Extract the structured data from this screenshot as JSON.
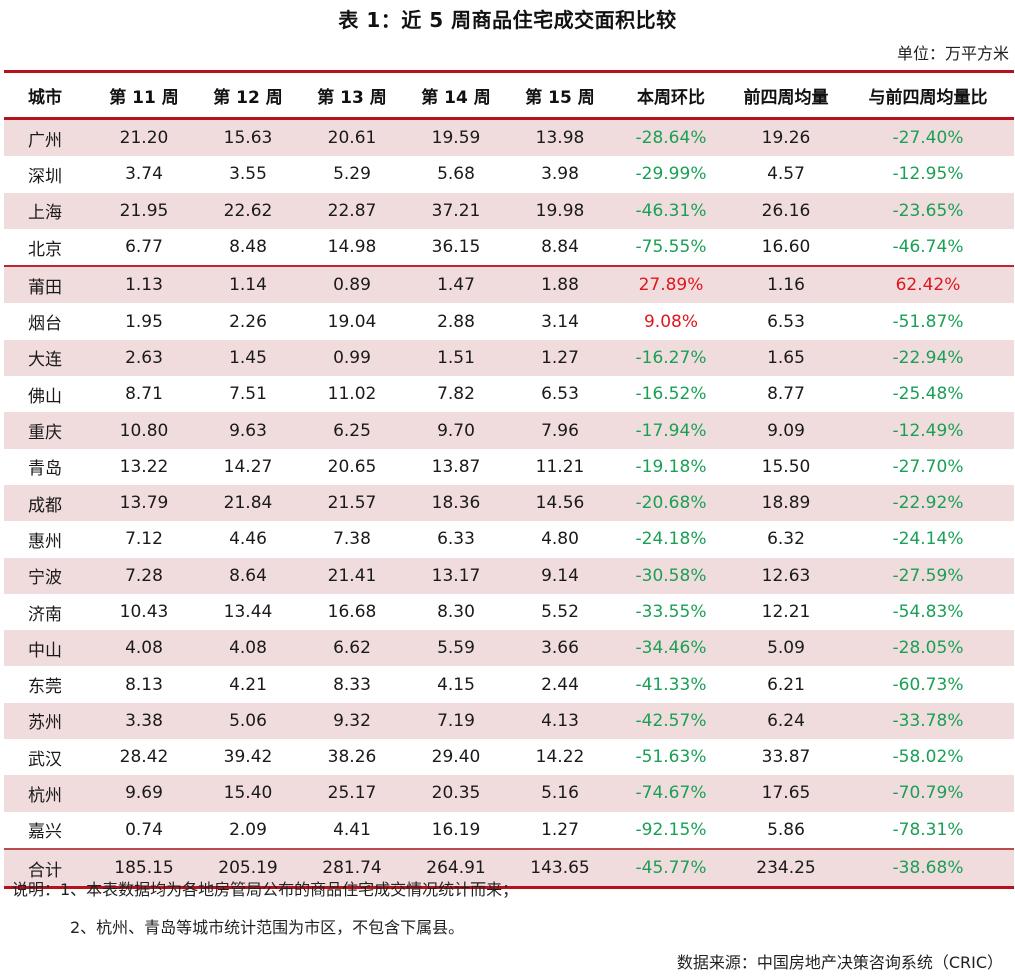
{
  "title": "表 1：近 5 周商品住宅成交面积比较",
  "unit": "单位：万平方米",
  "colors": {
    "rule": "#b5121b",
    "row_shade": "#f0dcdd",
    "negative": "#1aa055",
    "positive": "#e0161e"
  },
  "table": {
    "headers": [
      "城市",
      "第 11 周",
      "第 12 周",
      "第 13 周",
      "第 14 周",
      "第 15 周",
      "本周环比",
      "前四周均量",
      "与前四周均量比"
    ],
    "rows": [
      {
        "city": "广州",
        "w11": "21.20",
        "w12": "15.63",
        "w13": "20.61",
        "w14": "19.59",
        "w15": "13.98",
        "wow": "-28.64%",
        "avg4": "19.26",
        "vs_avg4": "-27.40%"
      },
      {
        "city": "深圳",
        "w11": "3.74",
        "w12": "3.55",
        "w13": "5.29",
        "w14": "5.68",
        "w15": "3.98",
        "wow": "-29.99%",
        "avg4": "4.57",
        "vs_avg4": "-12.95%"
      },
      {
        "city": "上海",
        "w11": "21.95",
        "w12": "22.62",
        "w13": "22.87",
        "w14": "37.21",
        "w15": "19.98",
        "wow": "-46.31%",
        "avg4": "26.16",
        "vs_avg4": "-23.65%"
      },
      {
        "city": "北京",
        "w11": "6.77",
        "w12": "8.48",
        "w13": "14.98",
        "w14": "36.15",
        "w15": "8.84",
        "wow": "-75.55%",
        "avg4": "16.60",
        "vs_avg4": "-46.74%"
      },
      {
        "city": "莆田",
        "w11": "1.13",
        "w12": "1.14",
        "w13": "0.89",
        "w14": "1.47",
        "w15": "1.88",
        "wow": "27.89%",
        "avg4": "1.16",
        "vs_avg4": "62.42%"
      },
      {
        "city": "烟台",
        "w11": "1.95",
        "w12": "2.26",
        "w13": "19.04",
        "w14": "2.88",
        "w15": "3.14",
        "wow": "9.08%",
        "avg4": "6.53",
        "vs_avg4": "-51.87%"
      },
      {
        "city": "大连",
        "w11": "2.63",
        "w12": "1.45",
        "w13": "0.99",
        "w14": "1.51",
        "w15": "1.27",
        "wow": "-16.27%",
        "avg4": "1.65",
        "vs_avg4": "-22.94%"
      },
      {
        "city": "佛山",
        "w11": "8.71",
        "w12": "7.51",
        "w13": "11.02",
        "w14": "7.82",
        "w15": "6.53",
        "wow": "-16.52%",
        "avg4": "8.77",
        "vs_avg4": "-25.48%"
      },
      {
        "city": "重庆",
        "w11": "10.80",
        "w12": "9.63",
        "w13": "6.25",
        "w14": "9.70",
        "w15": "7.96",
        "wow": "-17.94%",
        "avg4": "9.09",
        "vs_avg4": "-12.49%"
      },
      {
        "city": "青岛",
        "w11": "13.22",
        "w12": "14.27",
        "w13": "20.65",
        "w14": "13.87",
        "w15": "11.21",
        "wow": "-19.18%",
        "avg4": "15.50",
        "vs_avg4": "-27.70%"
      },
      {
        "city": "成都",
        "w11": "13.79",
        "w12": "21.84",
        "w13": "21.57",
        "w14": "18.36",
        "w15": "14.56",
        "wow": "-20.68%",
        "avg4": "18.89",
        "vs_avg4": "-22.92%"
      },
      {
        "city": "惠州",
        "w11": "7.12",
        "w12": "4.46",
        "w13": "7.38",
        "w14": "6.33",
        "w15": "4.80",
        "wow": "-24.18%",
        "avg4": "6.32",
        "vs_avg4": "-24.14%"
      },
      {
        "city": "宁波",
        "w11": "7.28",
        "w12": "8.64",
        "w13": "21.41",
        "w14": "13.17",
        "w15": "9.14",
        "wow": "-30.58%",
        "avg4": "12.63",
        "vs_avg4": "-27.59%"
      },
      {
        "city": "济南",
        "w11": "10.43",
        "w12": "13.44",
        "w13": "16.68",
        "w14": "8.30",
        "w15": "5.52",
        "wow": "-33.55%",
        "avg4": "12.21",
        "vs_avg4": "-54.83%"
      },
      {
        "city": "中山",
        "w11": "4.08",
        "w12": "4.08",
        "w13": "6.62",
        "w14": "5.59",
        "w15": "3.66",
        "wow": "-34.46%",
        "avg4": "5.09",
        "vs_avg4": "-28.05%"
      },
      {
        "city": "东莞",
        "w11": "8.13",
        "w12": "4.21",
        "w13": "8.33",
        "w14": "4.15",
        "w15": "2.44",
        "wow": "-41.33%",
        "avg4": "6.21",
        "vs_avg4": "-60.73%"
      },
      {
        "city": "苏州",
        "w11": "3.38",
        "w12": "5.06",
        "w13": "9.32",
        "w14": "7.19",
        "w15": "4.13",
        "wow": "-42.57%",
        "avg4": "6.24",
        "vs_avg4": "-33.78%"
      },
      {
        "city": "武汉",
        "w11": "28.42",
        "w12": "39.42",
        "w13": "38.26",
        "w14": "29.40",
        "w15": "14.22",
        "wow": "-51.63%",
        "avg4": "33.87",
        "vs_avg4": "-58.02%"
      },
      {
        "city": "杭州",
        "w11": "9.69",
        "w12": "15.40",
        "w13": "25.17",
        "w14": "20.35",
        "w15": "5.16",
        "wow": "-74.67%",
        "avg4": "17.65",
        "vs_avg4": "-70.79%"
      },
      {
        "city": "嘉兴",
        "w11": "0.74",
        "w12": "2.09",
        "w13": "4.41",
        "w14": "16.19",
        "w15": "1.27",
        "wow": "-92.15%",
        "avg4": "5.86",
        "vs_avg4": "-78.31%"
      }
    ],
    "total": {
      "city": "合计",
      "w11": "185.15",
      "w12": "205.19",
      "w13": "281.74",
      "w14": "264.91",
      "w15": "143.65",
      "wow": "-45.77%",
      "avg4": "234.25",
      "vs_avg4": "-38.68%"
    }
  },
  "notes": {
    "line1": "说明：1、本表数据均为各地房管局公布的商品住宅成交情况统计而来；",
    "line2": "2、杭州、青岛等城市统计范围为市区，不包含下属县。"
  },
  "source": "数据来源：中国房地产决策咨询系统（CRIC）"
}
